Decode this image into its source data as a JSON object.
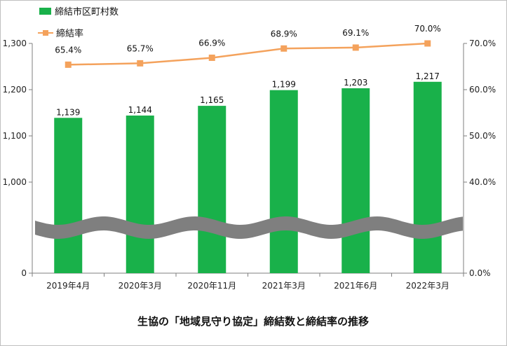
{
  "chart_data": {
    "type": "bar",
    "title": "生協の「地域見守り協定」締結数と締結率の推移",
    "categories": [
      "2019年4月",
      "2020年3月",
      "2020年11月",
      "2021年3月",
      "2021年6月",
      "2022年3月"
    ],
    "series": [
      {
        "name": "締結市区町村数",
        "type": "bar",
        "axis": "left",
        "values": [
          1139,
          1144,
          1165,
          1199,
          1203,
          1217
        ],
        "labels": [
          "1,139",
          "1,144",
          "1,165",
          "1,199",
          "1,203",
          "1,217"
        ],
        "color": "#19b14a"
      },
      {
        "name": "締結率",
        "type": "line",
        "axis": "right",
        "values": [
          65.4,
          65.7,
          66.9,
          68.9,
          69.1,
          70.0
        ],
        "labels": [
          "65.4%",
          "65.7%",
          "66.9%",
          "68.9%",
          "69.1%",
          "70.0%"
        ],
        "color": "#f4a25c",
        "marker": "square"
      }
    ],
    "y_left": {
      "broken": true,
      "range_upper": [
        900,
        1300
      ],
      "base": 0,
      "ticks": [
        {
          "value": 1300,
          "label": "1,300"
        },
        {
          "value": 1200,
          "label": "1,200"
        },
        {
          "value": 1100,
          "label": "1,100"
        },
        {
          "value": 1000,
          "label": "1,000"
        },
        {
          "value": 0,
          "label": "0"
        }
      ]
    },
    "y_right": {
      "range_upper": [
        30,
        70
      ],
      "base": 0,
      "ticks": [
        {
          "value": 70,
          "label": "70.0%"
        },
        {
          "value": 60,
          "label": "60.0%"
        },
        {
          "value": 50,
          "label": "50.0%"
        },
        {
          "value": 40,
          "label": "40.0%"
        },
        {
          "value": 0,
          "label": "0.0%"
        }
      ]
    },
    "grid": false,
    "legend_position": "top-left",
    "axis_break_color": "#7f7f7f"
  }
}
